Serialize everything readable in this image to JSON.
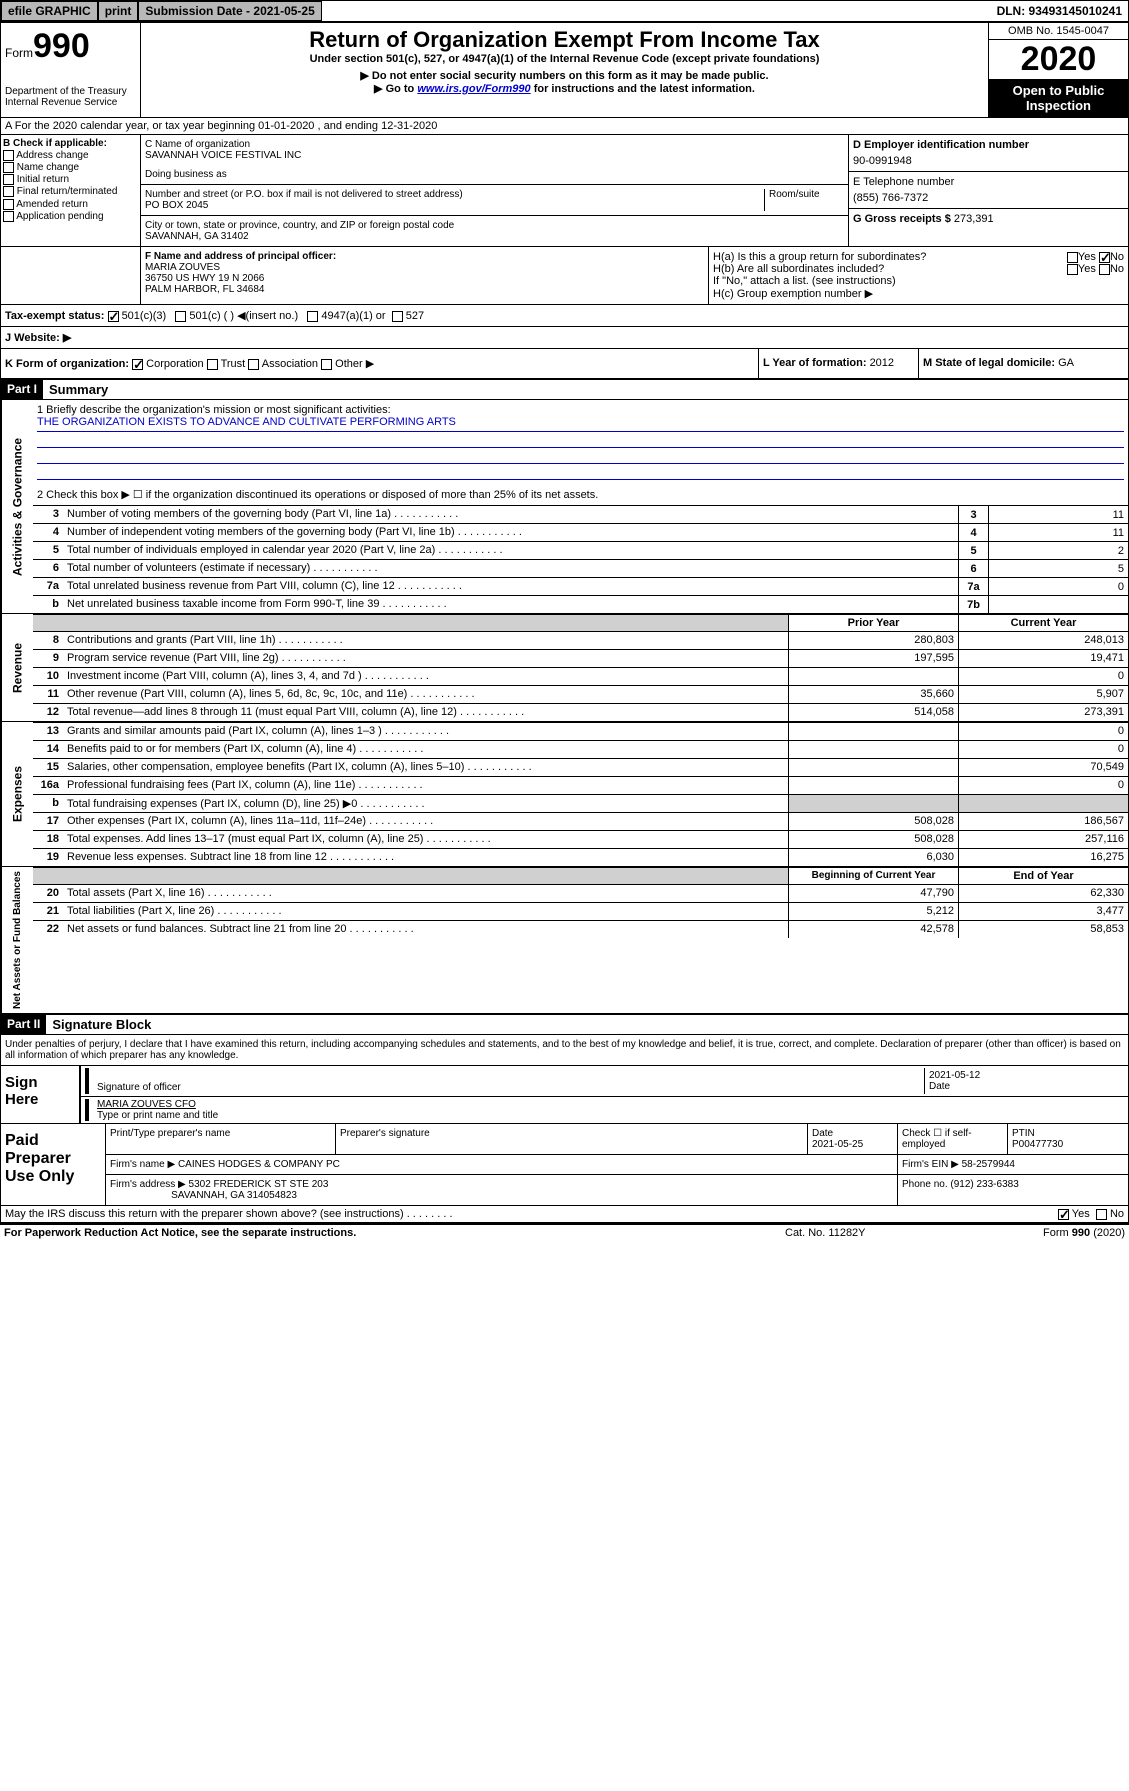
{
  "topbar": {
    "efile": "efile GRAPHIC",
    "print": "print",
    "sub_label": "Submission Date - ",
    "sub_date": "2021-05-25",
    "dln": "DLN: 93493145010241"
  },
  "header": {
    "form_prefix": "Form",
    "form_num": "990",
    "dept1": "Department of the Treasury",
    "dept2": "Internal Revenue Service",
    "title": "Return of Organization Exempt From Income Tax",
    "subtitle": "Under section 501(c), 527, or 4947(a)(1) of the Internal Revenue Code (except private foundations)",
    "note1": "▶ Do not enter social security numbers on this form as it may be made public.",
    "note2_pre": "▶ Go to ",
    "note2_link": "www.irs.gov/Form990",
    "note2_post": " for instructions and the latest information.",
    "omb": "OMB No. 1545-0047",
    "year": "2020",
    "open1": "Open to Public",
    "open2": "Inspection"
  },
  "rowA": "A For the 2020 calendar year, or tax year beginning 01-01-2020   , and ending 12-31-2020",
  "sectionB": {
    "label": "B Check if applicable:",
    "opts": [
      "Address change",
      "Name change",
      "Initial return",
      "Final return/terminated",
      "Amended return",
      "Application pending"
    ],
    "c_label": "C Name of organization",
    "c_name": "SAVANNAH VOICE FESTIVAL INC",
    "dba": "Doing business as",
    "addr_label": "Number and street (or P.O. box if mail is not delivered to street address)",
    "room": "Room/suite",
    "addr": "PO BOX 2045",
    "city_label": "City or town, state or province, country, and ZIP or foreign postal code",
    "city": "SAVANNAH, GA  31402",
    "d_label": "D Employer identification number",
    "ein": "90-0991948",
    "e_label": "E Telephone number",
    "phone": "(855) 766-7372",
    "g_label": "G Gross receipts $ ",
    "g_val": "273,391"
  },
  "officer": {
    "f_label": "F  Name and address of principal officer:",
    "name": "MARIA ZOUVES",
    "addr1": "36750 US HWY 19 N 2066",
    "addr2": "PALM HARBOR, FL  34684",
    "ha": "H(a)  Is this a group return for subordinates?",
    "hb": "H(b)  Are all subordinates included?",
    "hb_note": "If \"No,\" attach a list. (see instructions)",
    "hc": "H(c)  Group exemption number ▶",
    "yes": "Yes",
    "no": "No"
  },
  "tax": {
    "i_label": "Tax-exempt status:",
    "c3": "501(c)(3)",
    "c": "501(c) (  ) ◀(insert no.)",
    "a1": "4947(a)(1) or",
    "s527": "527",
    "j_label": "J   Website: ▶"
  },
  "k": {
    "label": "K Form of organization:",
    "corp": "Corporation",
    "trust": "Trust",
    "assoc": "Association",
    "other": "Other ▶",
    "l_label": "L Year of formation: ",
    "l_val": "2012",
    "m_label": "M State of legal domicile: ",
    "m_val": "GA"
  },
  "part1": {
    "header": "Part I",
    "title": "Summary",
    "q1": "1  Briefly describe the organization's mission or most significant activities:",
    "mission": "THE ORGANIZATION EXISTS TO ADVANCE AND CULTIVATE PERFORMING ARTS",
    "q2": "2   Check this box ▶ ☐  if the organization discontinued its operations or disposed of more than 25% of its net assets.",
    "lines": [
      {
        "n": "3",
        "t": "Number of voting members of the governing body (Part VI, line 1a)",
        "b": "3",
        "v": "11"
      },
      {
        "n": "4",
        "t": "Number of independent voting members of the governing body (Part VI, line 1b)",
        "b": "4",
        "v": "11"
      },
      {
        "n": "5",
        "t": "Total number of individuals employed in calendar year 2020 (Part V, line 2a)",
        "b": "5",
        "v": "2"
      },
      {
        "n": "6",
        "t": "Total number of volunteers (estimate if necessary)",
        "b": "6",
        "v": "5"
      },
      {
        "n": "7a",
        "t": "Total unrelated business revenue from Part VIII, column (C), line 12",
        "b": "7a",
        "v": "0"
      },
      {
        "n": "b",
        "t": "Net unrelated business taxable income from Form 990-T, line 39",
        "b": "7b",
        "v": ""
      }
    ],
    "col1": "Prior Year",
    "col2": "Current Year",
    "revenue": [
      {
        "n": "8",
        "t": "Contributions and grants (Part VIII, line 1h)",
        "v1": "280,803",
        "v2": "248,013"
      },
      {
        "n": "9",
        "t": "Program service revenue (Part VIII, line 2g)",
        "v1": "197,595",
        "v2": "19,471"
      },
      {
        "n": "10",
        "t": "Investment income (Part VIII, column (A), lines 3, 4, and 7d )",
        "v1": "",
        "v2": "0"
      },
      {
        "n": "11",
        "t": "Other revenue (Part VIII, column (A), lines 5, 6d, 8c, 9c, 10c, and 11e)",
        "v1": "35,660",
        "v2": "5,907"
      },
      {
        "n": "12",
        "t": "Total revenue—add lines 8 through 11 (must equal Part VIII, column (A), line 12)",
        "v1": "514,058",
        "v2": "273,391"
      }
    ],
    "expenses": [
      {
        "n": "13",
        "t": "Grants and similar amounts paid (Part IX, column (A), lines 1–3 )",
        "v1": "",
        "v2": "0"
      },
      {
        "n": "14",
        "t": "Benefits paid to or for members (Part IX, column (A), line 4)",
        "v1": "",
        "v2": "0"
      },
      {
        "n": "15",
        "t": "Salaries, other compensation, employee benefits (Part IX, column (A), lines 5–10)",
        "v1": "",
        "v2": "70,549"
      },
      {
        "n": "16a",
        "t": "Professional fundraising fees (Part IX, column (A), line 11e)",
        "v1": "",
        "v2": "0"
      },
      {
        "n": "b",
        "t": "Total fundraising expenses (Part IX, column (D), line 25) ▶0",
        "v1": "gray",
        "v2": "gray"
      },
      {
        "n": "17",
        "t": "Other expenses (Part IX, column (A), lines 11a–11d, 11f–24e)",
        "v1": "508,028",
        "v2": "186,567"
      },
      {
        "n": "18",
        "t": "Total expenses. Add lines 13–17 (must equal Part IX, column (A), line 25)",
        "v1": "508,028",
        "v2": "257,116"
      },
      {
        "n": "19",
        "t": "Revenue less expenses. Subtract line 18 from line 12",
        "v1": "6,030",
        "v2": "16,275"
      }
    ],
    "col3": "Beginning of Current Year",
    "col4": "End of Year",
    "netassets": [
      {
        "n": "20",
        "t": "Total assets (Part X, line 16)",
        "v1": "47,790",
        "v2": "62,330"
      },
      {
        "n": "21",
        "t": "Total liabilities (Part X, line 26)",
        "v1": "5,212",
        "v2": "3,477"
      },
      {
        "n": "22",
        "t": "Net assets or fund balances. Subtract line 21 from line 20",
        "v1": "42,578",
        "v2": "58,853"
      }
    ],
    "side1": "Activities & Governance",
    "side2": "Revenue",
    "side3": "Expenses",
    "side4": "Net Assets or Fund Balances"
  },
  "part2": {
    "header": "Part II",
    "title": "Signature Block",
    "perjury": "Under penalties of perjury, I declare that I have examined this return, including accompanying schedules and statements, and to the best of my knowledge and belief, it is true, correct, and complete. Declaration of preparer (other than officer) is based on all information of which preparer has any knowledge.",
    "sign": "Sign Here",
    "sig_officer": "Signature of officer",
    "sig_date": "2021-05-12",
    "date_label": "Date",
    "name_title": "MARIA ZOUVES CFO",
    "name_label": "Type or print name and title",
    "paid": "Paid Preparer Use Only",
    "prep_name_label": "Print/Type preparer's name",
    "prep_sig_label": "Preparer's signature",
    "prep_date": "2021-05-25",
    "check_label": "Check ☐ if self-employed",
    "ptin_label": "PTIN",
    "ptin": "P00477730",
    "firm_name_label": "Firm's name    ▶ ",
    "firm_name": "CAINES HODGES & COMPANY PC",
    "firm_ein_label": "Firm's EIN ▶ ",
    "firm_ein": "58-2579944",
    "firm_addr_label": "Firm's address ▶ ",
    "firm_addr1": "5302 FREDERICK ST STE 203",
    "firm_addr2": "SAVANNAH, GA  314054823",
    "phone_label": "Phone no. ",
    "firm_phone": "(912) 233-6383",
    "discuss": "May the IRS discuss this return with the preparer shown above? (see instructions)"
  },
  "footer": {
    "pra": "For Paperwork Reduction Act Notice, see the separate instructions.",
    "cat": "Cat. No. 11282Y",
    "form": "Form 990 (2020)"
  }
}
